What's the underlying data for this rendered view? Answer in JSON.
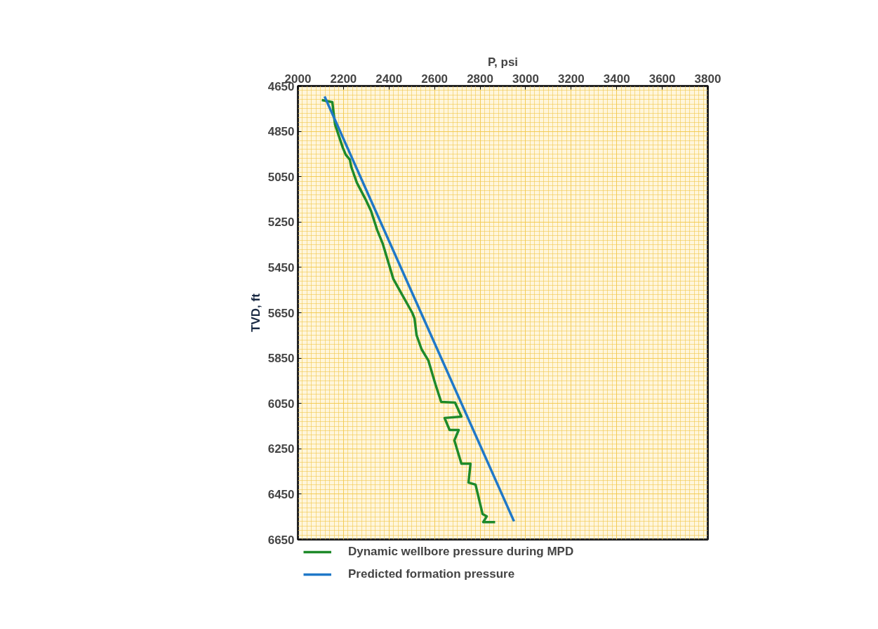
{
  "chart_data": {
    "type": "line",
    "xlabel": "P, psi",
    "ylabel": "TVD, ft",
    "xlim": [
      2000,
      3800
    ],
    "xticks": [
      2000,
      2200,
      2400,
      2600,
      2800,
      3000,
      3200,
      3400,
      3600,
      3800
    ],
    "ylim": [
      6650,
      4650
    ],
    "yticks": [
      4650,
      4850,
      5050,
      5250,
      5450,
      5650,
      5850,
      6050,
      6250,
      6450,
      6650
    ],
    "grid": true,
    "legend": "bottom",
    "line_style": "solid",
    "series": [
      {
        "name": "Dynamic wellbore pressure during MPD",
        "color": "#1e8a2a",
        "x": [
          2105,
          2151,
          2163,
          2197,
          2210,
          2228,
          2234,
          2259,
          2296,
          2321,
          2348,
          2373,
          2419,
          2459,
          2502,
          2512,
          2521,
          2543,
          2573,
          2604,
          2629,
          2690,
          2718,
          2644,
          2666,
          2706,
          2687,
          2718,
          2758,
          2749,
          2780,
          2811,
          2829,
          2814,
          2866
        ],
        "values": [
          4712,
          4721,
          4820,
          4922,
          4953,
          4975,
          5006,
          5077,
          5148,
          5201,
          5285,
          5347,
          5501,
          5573,
          5650,
          5675,
          5749,
          5811,
          5861,
          5966,
          6043,
          6046,
          6108,
          6114,
          6167,
          6167,
          6213,
          6316,
          6316,
          6399,
          6408,
          6538,
          6548,
          6573,
          6573
        ]
      },
      {
        "name": "Predicted formation pressure",
        "color": "#1f78c8",
        "x": [
          2117,
          2949
        ],
        "values": [
          4696,
          6570
        ]
      }
    ]
  }
}
